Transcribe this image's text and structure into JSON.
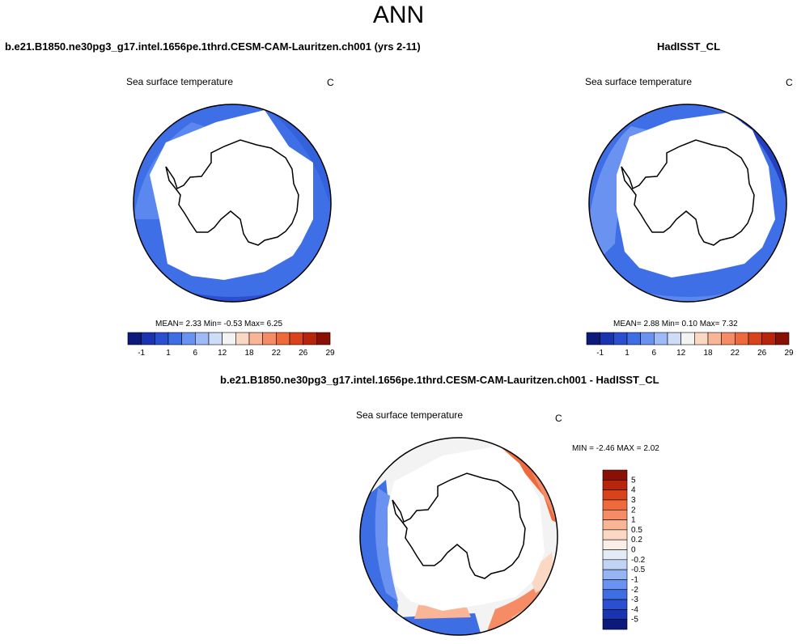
{
  "page": {
    "title": "ANN",
    "units": "C"
  },
  "panels": [
    {
      "title": "b.e21.B1850.ne30pg3_g17.intel.1656pe.1thrd.CESM-CAM-Lauritzen.ch001 (yrs 2-11)",
      "field": "Sea surface temperature",
      "units": "C",
      "stats": "MEAN=   2.33  Min=  -0.53  Max=   6.25"
    },
    {
      "title": "HadISST_CL",
      "field": "Sea surface temperature",
      "units": "C",
      "stats": "MEAN=   2.88  Min=   0.10  Max=   7.32"
    },
    {
      "title": "b.e21.B1850.ne30pg3_g17.intel.1656pe.1thrd.CESM-CAM-Lauritzen.ch001 - HadISST_CL",
      "field": "Sea surface temperature",
      "units": "C",
      "stats": "MIN =  -2.46 MAX =   2.02"
    }
  ],
  "colorbars": {
    "abs": {
      "labels": [
        "-1",
        "1",
        "6",
        "12",
        "18",
        "22",
        "26",
        "29"
      ],
      "colors": [
        "#0d1a7a",
        "#1a33b0",
        "#2a4fd0",
        "#3e6ee4",
        "#6a92f0",
        "#9ebbf7",
        "#cfdcf7",
        "#f3f3f3",
        "#fbd8c3",
        "#f9b595",
        "#f58c66",
        "#ee6a3d",
        "#d9431c",
        "#b8250d",
        "#8a0f05"
      ]
    },
    "diff": {
      "labels": [
        "5",
        "4",
        "3",
        "2",
        "1",
        "0.5",
        "0.2",
        "0",
        "-0.2",
        "-0.5",
        "-1",
        "-2",
        "-3",
        "-4",
        "-5"
      ],
      "colors": [
        "#8a0f05",
        "#b8250d",
        "#d9431c",
        "#ee6a3d",
        "#f58c66",
        "#f9b595",
        "#fbd8c3",
        "#fbeee6",
        "#e3ebf7",
        "#c2d4f6",
        "#96b4f2",
        "#6a92f0",
        "#3e6ee4",
        "#2a4fd0",
        "#1a33b0",
        "#0d1a7a"
      ]
    }
  }
}
